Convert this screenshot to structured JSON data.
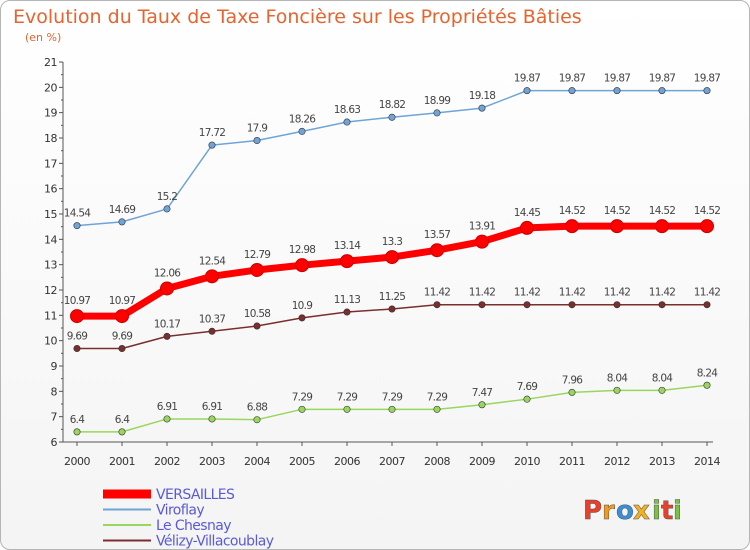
{
  "chart_data": {
    "type": "line",
    "title": "Evolution du Taux de Taxe Foncière sur les Propriétés Bâties",
    "subtitle": "(en %)",
    "xlabel": "",
    "ylabel": "",
    "categories": [
      "2000",
      "2001",
      "2002",
      "2003",
      "2004",
      "2005",
      "2006",
      "2007",
      "2008",
      "2009",
      "2010",
      "2011",
      "2012",
      "2013",
      "2014"
    ],
    "yticks": [
      "6",
      "7",
      "8",
      "9",
      "10",
      "11",
      "12",
      "13",
      "14",
      "15",
      "16",
      "17",
      "18",
      "19",
      "20",
      "21"
    ],
    "ylim": [
      6,
      21
    ],
    "grid": false,
    "legend_position": "bottom-left",
    "series": [
      {
        "name": "VERSAILLES",
        "color": "#ff0000",
        "values": [
          10.97,
          10.97,
          12.06,
          12.54,
          12.79,
          12.98,
          13.14,
          13.3,
          13.57,
          13.91,
          14.45,
          14.52,
          14.52,
          14.52,
          14.52
        ],
        "labels": [
          "10.97",
          "10.97",
          "12.06",
          "12.54",
          "12.79",
          "12.98",
          "13.14",
          "13.3",
          "13.57",
          "13.91",
          "14.45",
          "14.52",
          "14.52",
          "14.52",
          "14.52"
        ]
      },
      {
        "name": "Viroflay",
        "color": "#6fa4d8",
        "values": [
          14.54,
          14.69,
          15.2,
          17.72,
          17.9,
          18.26,
          18.63,
          18.82,
          18.99,
          19.18,
          19.87,
          19.87,
          19.87,
          19.87,
          19.87
        ],
        "labels": [
          "14.54",
          "14.69",
          "15.2",
          "17.72",
          "17.9",
          "18.26",
          "18.63",
          "18.82",
          "18.99",
          "19.18",
          "19.87",
          "19.87",
          "19.87",
          "19.87",
          "19.87"
        ]
      },
      {
        "name": "Le Chesnay",
        "color": "#99d65e",
        "values": [
          6.4,
          6.4,
          6.91,
          6.91,
          6.88,
          7.29,
          7.29,
          7.29,
          7.29,
          7.47,
          7.69,
          7.96,
          8.04,
          8.04,
          8.24
        ],
        "labels": [
          "6.4",
          "6.4",
          "6.91",
          "6.91",
          "6.88",
          "7.29",
          "7.29",
          "7.29",
          "7.29",
          "7.47",
          "7.69",
          "7.96",
          "8.04",
          "8.04",
          "8.24"
        ]
      },
      {
        "name": "Vélizy-Villacoublay",
        "color": "#7a2e2e",
        "values": [
          9.69,
          9.69,
          10.17,
          10.37,
          10.58,
          10.9,
          11.13,
          11.25,
          11.42,
          11.42,
          11.42,
          11.42,
          11.42,
          11.42,
          11.42
        ],
        "labels": [
          "9.69",
          "9.69",
          "10.17",
          "10.37",
          "10.58",
          "10.9",
          "11.13",
          "11.25",
          "11.42",
          "11.42",
          "11.42",
          "11.42",
          "11.42",
          "11.42",
          "11.42"
        ]
      }
    ]
  },
  "brand": {
    "letters": [
      "P",
      "r",
      "o",
      "x",
      "i",
      "t",
      "i"
    ],
    "colors": [
      "#e8402a",
      "#f29a1f",
      "#3a8fd6",
      "#f2b21f",
      "#7cc242",
      "#e8402a",
      "#7cc242"
    ]
  },
  "colors": {
    "title": "#e8632e",
    "axis": "#555555",
    "legend_text": "#5a5ad8"
  }
}
